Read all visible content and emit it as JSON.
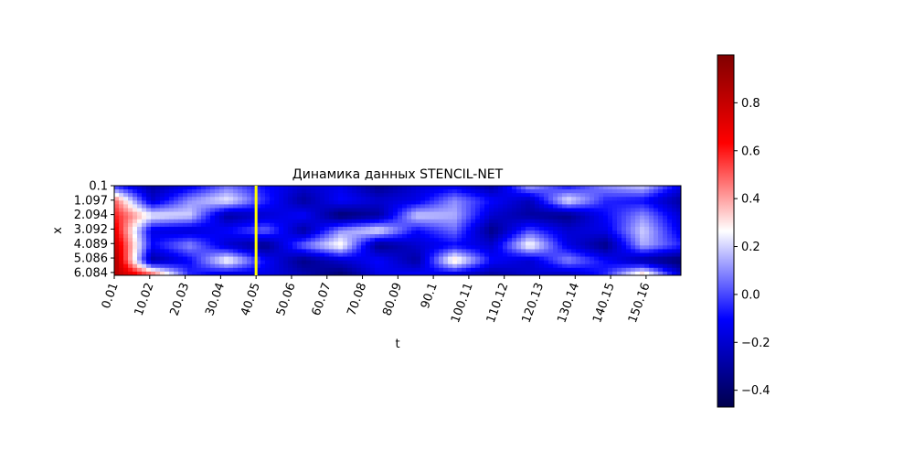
{
  "chart_data": {
    "type": "heatmap",
    "title": "Динамика данных STENCIL-NET",
    "xlabel": "t",
    "ylabel": "x",
    "x_ticks": [
      "0.01",
      "10.02",
      "20.03",
      "30.04",
      "40.05",
      "50.06",
      "60.07",
      "70.08",
      "80.09",
      "90.1",
      "100.11",
      "110.12",
      "120.13",
      "130.14",
      "140.15",
      "150.16"
    ],
    "y_ticks": [
      "0.1",
      "1.097",
      "2.094",
      "3.092",
      "4.089",
      "5.086",
      "6.084"
    ],
    "x_range": [
      0.01,
      160.0
    ],
    "y_range": [
      0.1,
      6.28
    ],
    "marker_line": {
      "t": 40.05,
      "color": "#ffff00"
    },
    "colorbar": {
      "colormap": "seismic",
      "min": -0.47,
      "max": 1.0,
      "ticks": [
        "−0.4",
        "−0.2",
        "0.0",
        "0.2",
        "0.4",
        "0.6",
        "0.8"
      ],
      "tick_values": [
        -0.4,
        -0.2,
        0.0,
        0.2,
        0.4,
        0.6,
        0.8
      ]
    },
    "field_estimate": {
      "grid_rows": 7,
      "grid_cols": 16,
      "values": [
        [
          -0.05,
          -0.3,
          -0.15,
          0.05,
          -0.1,
          -0.2,
          -0.15,
          -0.35,
          -0.2,
          -0.15,
          -0.3,
          0.15,
          -0.1,
          0.1,
          0.2,
          -0.15
        ],
        [
          0.5,
          -0.2,
          0.1,
          0.25,
          -0.05,
          -0.3,
          -0.1,
          -0.2,
          -0.15,
          0.1,
          -0.1,
          -0.25,
          0.25,
          -0.05,
          -0.1,
          -0.3
        ],
        [
          0.6,
          0.25,
          0.2,
          -0.3,
          -0.2,
          -0.1,
          -0.4,
          -0.3,
          0.2,
          0.15,
          -0.2,
          -0.3,
          -0.35,
          -0.1,
          0.1,
          -0.2
        ],
        [
          0.7,
          -0.15,
          -0.2,
          -0.1,
          0.05,
          -0.3,
          0.1,
          0.25,
          -0.1,
          0.05,
          -0.35,
          0.0,
          -0.2,
          -0.15,
          0.2,
          -0.15
        ],
        [
          0.8,
          -0.1,
          0.1,
          -0.2,
          -0.35,
          0.05,
          0.3,
          -0.35,
          -0.2,
          -0.1,
          -0.2,
          0.3,
          -0.15,
          -0.35,
          0.15,
          -0.05
        ],
        [
          0.9,
          -0.3,
          -0.1,
          0.3,
          -0.1,
          -0.35,
          -0.2,
          -0.1,
          -0.3,
          0.35,
          -0.1,
          -0.2,
          0.1,
          -0.1,
          -0.3,
          -0.4
        ],
        [
          0.85,
          0.55,
          -0.05,
          -0.2,
          -0.15,
          -0.25,
          -0.4,
          -0.15,
          -0.1,
          -0.2,
          -0.3,
          -0.2,
          -0.25,
          -0.05,
          0.4,
          -0.2
        ]
      ]
    }
  }
}
